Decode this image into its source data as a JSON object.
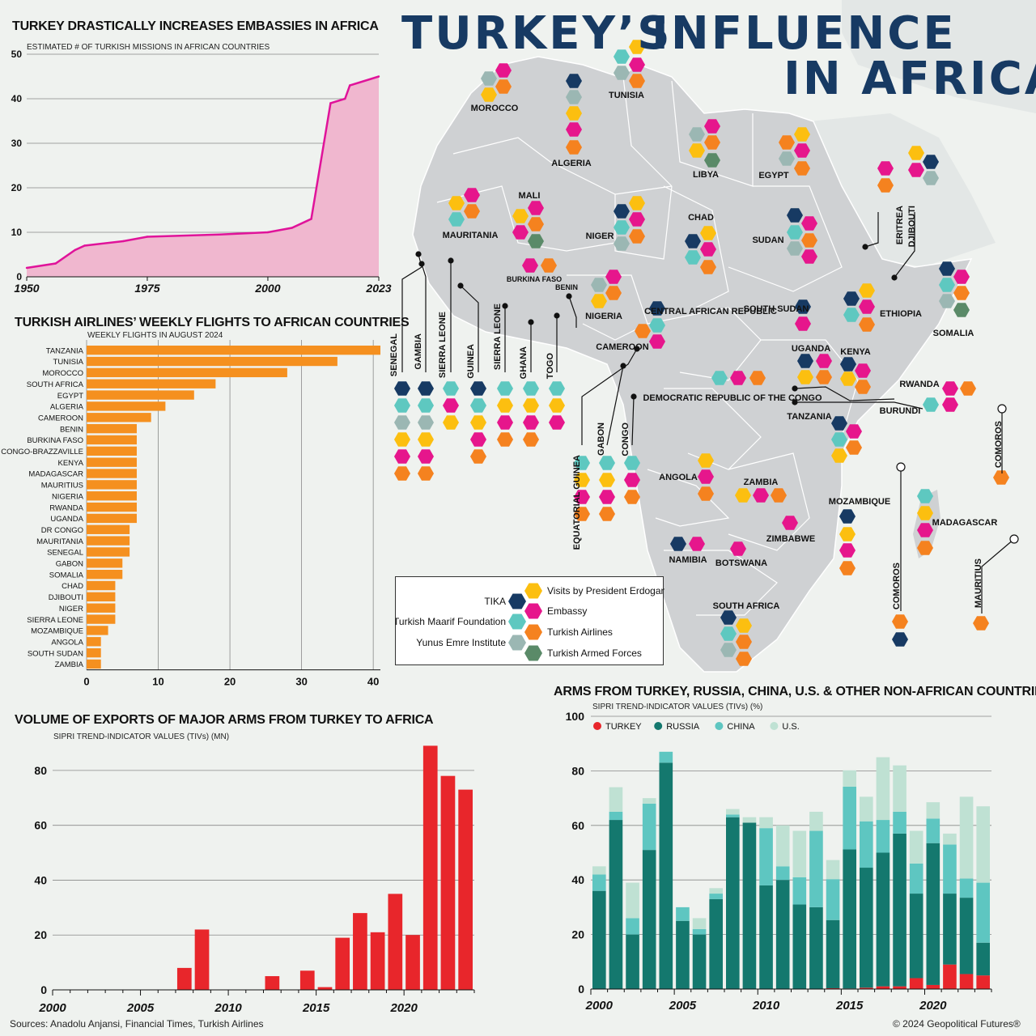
{
  "header": {
    "title_line1": "TURKEY’S",
    "title_line2": "INFLUENCE",
    "title_line3": "IN AFRICA"
  },
  "colors": {
    "tika": "#173a63",
    "embassy": "#e6168c",
    "maarif": "#5ec8c0",
    "airlines": "#f5821f",
    "erdogan": "#fcbf10",
    "yunus": "#9bb7b3",
    "armed": "#5a8a68",
    "map_land": "#cfd1d3",
    "area_fill": "#f0b7cf",
    "area_line": "#e0139a",
    "bar_orange": "#f5901f",
    "bar_red": "#e8262b",
    "russia": "#14786e",
    "china": "#5ec6c1",
    "us": "#bfe1d3"
  },
  "chart_data": [
    {
      "type": "area",
      "title": "TURKEY DRASTICALLY INCREASES EMBASSIES IN AFRICA",
      "subtitle": "ESTIMATED # OF TURKISH MISSIONS IN AFRICAN COUNTRIES",
      "xlim": [
        1950,
        2023
      ],
      "ylim": [
        0,
        50
      ],
      "x_ticks": [
        "1950",
        "1975",
        "2000",
        "2023"
      ],
      "y_ticks": [
        "0",
        "10",
        "20",
        "30",
        "40",
        "50"
      ],
      "x": [
        1950,
        1956,
        1960,
        1962,
        1970,
        1975,
        1990,
        2000,
        2005,
        2009,
        2011,
        2013,
        2016,
        2017,
        2023
      ],
      "y": [
        2,
        3,
        6,
        7,
        8,
        9,
        9.5,
        10,
        11,
        13,
        26,
        39,
        40,
        43,
        45
      ]
    },
    {
      "type": "bar",
      "orientation": "horizontal",
      "title": "TURKISH AIRLINES’ WEEKLY FLIGHTS TO AFRICAN COUNTRIES",
      "subtitle": "WEEKLY FLIGHTS IN AUGUST 2024",
      "xlim": [
        0,
        41
      ],
      "x_ticks": [
        "0",
        "10",
        "20",
        "30",
        "40"
      ],
      "categories": [
        "TANZANIA",
        "TUNISIA",
        "MOROCCO",
        "SOUTH AFRICA",
        "EGYPT",
        "ALGERIA",
        "CAMEROON",
        "BENIN",
        "BURKINA FASO",
        "CONGO-BRAZZAVILLE",
        "KENYA",
        "MADAGASCAR",
        "MAURITIUS",
        "NIGERIA",
        "RWANDA",
        "UGANDA",
        "DR CONGO",
        "MAURITANIA",
        "SENEGAL",
        "GABON",
        "SOMALIA",
        "CHAD",
        "DJIBOUTI",
        "NIGER",
        "SIERRA LEONE",
        "MOZAMBIQUE",
        "ANGOLA",
        "SOUTH SUDAN",
        "ZAMBIA"
      ],
      "values": [
        41,
        35,
        28,
        18,
        15,
        11,
        9,
        7,
        7,
        7,
        7,
        7,
        7,
        7,
        7,
        7,
        6,
        6,
        6,
        5,
        5,
        4,
        4,
        4,
        4,
        3,
        2,
        2,
        2
      ]
    },
    {
      "type": "bar",
      "title": "VOLUME OF EXPORTS OF MAJOR ARMS FROM TURKEY TO AFRICA",
      "subtitle": "SIPRI TREND-INDICATOR VALUES (TIVs) (MN)",
      "xlim": [
        2000,
        2024
      ],
      "ylim": [
        0,
        90
      ],
      "x_ticks": [
        "2000",
        "2005",
        "2010",
        "2015",
        "2020"
      ],
      "y_ticks": [
        "0",
        "20",
        "40",
        "60",
        "80"
      ],
      "x": [
        2007,
        2008,
        2012,
        2014,
        2015,
        2016,
        2017,
        2018,
        2019,
        2020,
        2021,
        2022,
        2023
      ],
      "values": [
        8,
        22,
        5,
        7,
        1,
        19,
        28,
        21,
        35,
        20,
        89,
        78,
        73
      ]
    },
    {
      "type": "bar",
      "stacked": true,
      "title": "ARMS FROM TURKEY, RUSSIA, CHINA, U.S. & OTHER NON-AFRICAN COUNTRIES",
      "subtitle": "SIPRI TREND-INDICATOR VALUES (TIVs) (%)",
      "ylim": [
        0,
        100
      ],
      "x_ticks": [
        "2000",
        "2005",
        "2010",
        "2015",
        "2020"
      ],
      "y_ticks": [
        "0",
        "20",
        "40",
        "60",
        "80",
        "100"
      ],
      "legend": [
        "TURKEY",
        "RUSSIA",
        "CHINA",
        "U.S."
      ],
      "legend_position": "top-left",
      "x": [
        2000,
        2001,
        2002,
        2003,
        2004,
        2005,
        2006,
        2007,
        2008,
        2009,
        2010,
        2011,
        2012,
        2013,
        2014,
        2015,
        2016,
        2017,
        2018,
        2019,
        2020,
        2021,
        2022,
        2023
      ],
      "series": [
        {
          "name": "TURKEY",
          "values": [
            0,
            0,
            0,
            0,
            0,
            0,
            0,
            0,
            0,
            0,
            0,
            0,
            0,
            0,
            0.3,
            0.2,
            0.5,
            1,
            1,
            4,
            1.5,
            9,
            5.5,
            5
          ]
        },
        {
          "name": "RUSSIA",
          "values": [
            36,
            62,
            20,
            51,
            83,
            25,
            20,
            33,
            63,
            61,
            38,
            40,
            31,
            30,
            25,
            51,
            44,
            49,
            56,
            31,
            52,
            26,
            28,
            12
          ]
        },
        {
          "name": "CHINA",
          "values": [
            6,
            3,
            6,
            17,
            4,
            5,
            2,
            2,
            1,
            0,
            21,
            5,
            10,
            28,
            15,
            23,
            17,
            12,
            8,
            11,
            9,
            18,
            7,
            22
          ]
        },
        {
          "name": "U.S.",
          "values": [
            3,
            9,
            13,
            2,
            0,
            0,
            4,
            2,
            2,
            2,
            4,
            15,
            17,
            7,
            7,
            6,
            9,
            23,
            17,
            12,
            6,
            4,
            30,
            28
          ]
        }
      ]
    }
  ],
  "map": {
    "legend": [
      {
        "label": "Visits by President Erdogan",
        "color": "#fcbf10"
      },
      {
        "label": "Embassy",
        "color": "#e6168c"
      },
      {
        "label": "Turkish Airlines",
        "color": "#f5821f"
      },
      {
        "label": "Turkish Armed Forces",
        "color": "#5a8a68"
      },
      {
        "label": "TIKA",
        "color": "#173a63"
      },
      {
        "label": "Turkish Maarif Foundation",
        "color": "#5ec8c0"
      },
      {
        "label": "Yunus Emre Institute",
        "color": "#9bb7b3"
      }
    ],
    "countries": [
      "MOROCCO",
      "ALGERIA",
      "TUNISIA",
      "LIBYA",
      "EGYPT",
      "MAURITANIA",
      "MALI",
      "NIGER",
      "CHAD",
      "SUDAN",
      "ERITREA",
      "DJIBOUTI",
      "BURKINA FASO",
      "BENIN",
      "NIGERIA",
      "CENTRAL AFRICAN REPUBLIC",
      "SOUTH SUDAN",
      "ETHIOPIA",
      "SOMALIA",
      "CAMEROON",
      "UGANDA",
      "KENYA",
      "RWANDA",
      "BURUNDI",
      "DEMOCRATIC REPUBLIC OF THE CONGO",
      "TANZANIA",
      "SENEGAL",
      "GAMBIA",
      "SIERRA LEONE",
      "GUINEA",
      "SIERRA LEONE",
      "GHANA",
      "TOGO",
      "EQUATORIAL GUINEA",
      "GABON",
      "CONGO",
      "ANGOLA",
      "ZAMBIA",
      "ZIMBABWE",
      "MOZAMBIQUE",
      "MADAGASCAR",
      "COMOROS",
      "COMOROS",
      "MAURITIUS",
      "NAMIBIA",
      "BOTSWANA",
      "SOUTH AFRICA"
    ]
  },
  "footer": {
    "sources": "Sources: Anadolu Anjansi, Financial Times, Turkish Airlines",
    "copyright": "© 2024 Geopolitical Futures®"
  }
}
